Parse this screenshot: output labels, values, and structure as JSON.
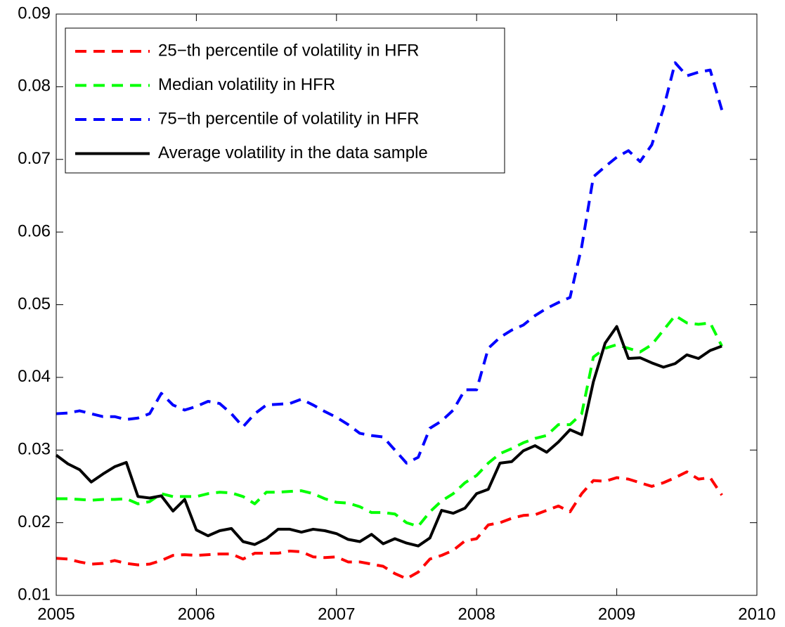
{
  "chart_data": {
    "type": "line",
    "x": [
      2005,
      2005.0833,
      2005.1667,
      2005.25,
      2005.3333,
      2005.4167,
      2005.5,
      2005.5833,
      2005.6667,
      2005.75,
      2005.8333,
      2005.9167,
      2006,
      2006.0833,
      2006.1667,
      2006.25,
      2006.3333,
      2006.4167,
      2006.5,
      2006.5833,
      2006.6667,
      2006.75,
      2006.8333,
      2006.9167,
      2007,
      2007.0833,
      2007.1667,
      2007.25,
      2007.3333,
      2007.4167,
      2007.5,
      2007.5833,
      2007.6667,
      2007.75,
      2007.8333,
      2007.9167,
      2008,
      2008.0833,
      2008.1667,
      2008.25,
      2008.3333,
      2008.4167,
      2008.5,
      2008.5833,
      2008.6667,
      2008.75,
      2008.8333,
      2008.9167,
      2009,
      2009.0833,
      2009.1667,
      2009.25,
      2009.3333,
      2009.4167,
      2009.5,
      2009.5833,
      2009.6667,
      2009.75
    ],
    "series": [
      {
        "name": "25−th percentile of volatility in HFR",
        "color": "#ff0000",
        "dashed": true,
        "values": [
          0.0151,
          0.015,
          0.0146,
          0.0143,
          0.0144,
          0.0148,
          0.0144,
          0.0142,
          0.0143,
          0.0148,
          0.0155,
          0.0156,
          0.0155,
          0.0156,
          0.0157,
          0.0157,
          0.015,
          0.0158,
          0.0158,
          0.0158,
          0.0161,
          0.016,
          0.0153,
          0.0152,
          0.0153,
          0.0146,
          0.0146,
          0.0143,
          0.014,
          0.013,
          0.0123,
          0.0132,
          0.015,
          0.0155,
          0.0162,
          0.0175,
          0.0178,
          0.0197,
          0.02,
          0.0206,
          0.021,
          0.0211,
          0.0217,
          0.0223,
          0.0215,
          0.024,
          0.0258,
          0.0257,
          0.0262,
          0.026,
          0.0255,
          0.025,
          0.0255,
          0.0262,
          0.027,
          0.026,
          0.0262,
          0.0238
        ]
      },
      {
        "name": "Median volatility in HFR",
        "color": "#00ff00",
        "dashed": true,
        "values": [
          0.0233,
          0.0233,
          0.0232,
          0.0231,
          0.0232,
          0.0232,
          0.0233,
          0.0226,
          0.0229,
          0.024,
          0.0236,
          0.0236,
          0.0236,
          0.024,
          0.0242,
          0.0241,
          0.0236,
          0.0226,
          0.0242,
          0.0242,
          0.0243,
          0.0244,
          0.024,
          0.0233,
          0.0228,
          0.0227,
          0.0222,
          0.0214,
          0.0214,
          0.0212,
          0.02,
          0.0195,
          0.0215,
          0.023,
          0.024,
          0.0255,
          0.0265,
          0.0282,
          0.0295,
          0.0302,
          0.031,
          0.0316,
          0.032,
          0.0335,
          0.0335,
          0.035,
          0.0428,
          0.044,
          0.0445,
          0.044,
          0.0435,
          0.0445,
          0.0465,
          0.0485,
          0.0475,
          0.0473,
          0.0475,
          0.0443
        ]
      },
      {
        "name": "75−th percentile of volatility in HFR",
        "color": "#0000ff",
        "dashed": true,
        "values": [
          0.035,
          0.0351,
          0.0354,
          0.035,
          0.0346,
          0.0346,
          0.0342,
          0.0344,
          0.035,
          0.0378,
          0.0362,
          0.0355,
          0.036,
          0.0367,
          0.0364,
          0.035,
          0.0332,
          0.035,
          0.0362,
          0.0363,
          0.0364,
          0.037,
          0.0362,
          0.0353,
          0.0345,
          0.0335,
          0.0323,
          0.032,
          0.0318,
          0.03,
          0.0282,
          0.029,
          0.033,
          0.034,
          0.0355,
          0.0383,
          0.0383,
          0.044,
          0.0455,
          0.0465,
          0.0472,
          0.0485,
          0.0495,
          0.0503,
          0.051,
          0.058,
          0.0676,
          0.069,
          0.0703,
          0.0712,
          0.0697,
          0.072,
          0.077,
          0.0833,
          0.0815,
          0.082,
          0.0823,
          0.0768
        ]
      },
      {
        "name": "Average volatility in the data sample",
        "color": "#000000",
        "dashed": false,
        "values": [
          0.0293,
          0.0281,
          0.0273,
          0.0256,
          0.0267,
          0.0277,
          0.0283,
          0.0236,
          0.0234,
          0.0237,
          0.0216,
          0.0232,
          0.019,
          0.0182,
          0.0189,
          0.0192,
          0.0174,
          0.017,
          0.0178,
          0.0191,
          0.0191,
          0.0187,
          0.0191,
          0.0189,
          0.0185,
          0.0177,
          0.0174,
          0.0184,
          0.0171,
          0.0178,
          0.0172,
          0.0168,
          0.0179,
          0.0217,
          0.0213,
          0.022,
          0.024,
          0.0246,
          0.0282,
          0.0284,
          0.0299,
          0.0306,
          0.0297,
          0.0311,
          0.0328,
          0.0321,
          0.0394,
          0.0447,
          0.047,
          0.0426,
          0.0427,
          0.042,
          0.0414,
          0.0419,
          0.0431,
          0.0426,
          0.0437,
          0.0443
        ]
      }
    ],
    "xlim": [
      2005,
      2010
    ],
    "xticks": [
      2005,
      2006,
      2007,
      2008,
      2009,
      2010
    ],
    "ylim": [
      0.01,
      0.09
    ],
    "yticks": [
      0.01,
      0.02,
      0.03,
      0.04,
      0.05,
      0.06,
      0.07,
      0.08,
      0.09
    ],
    "grid": false,
    "legend": "upper left"
  }
}
